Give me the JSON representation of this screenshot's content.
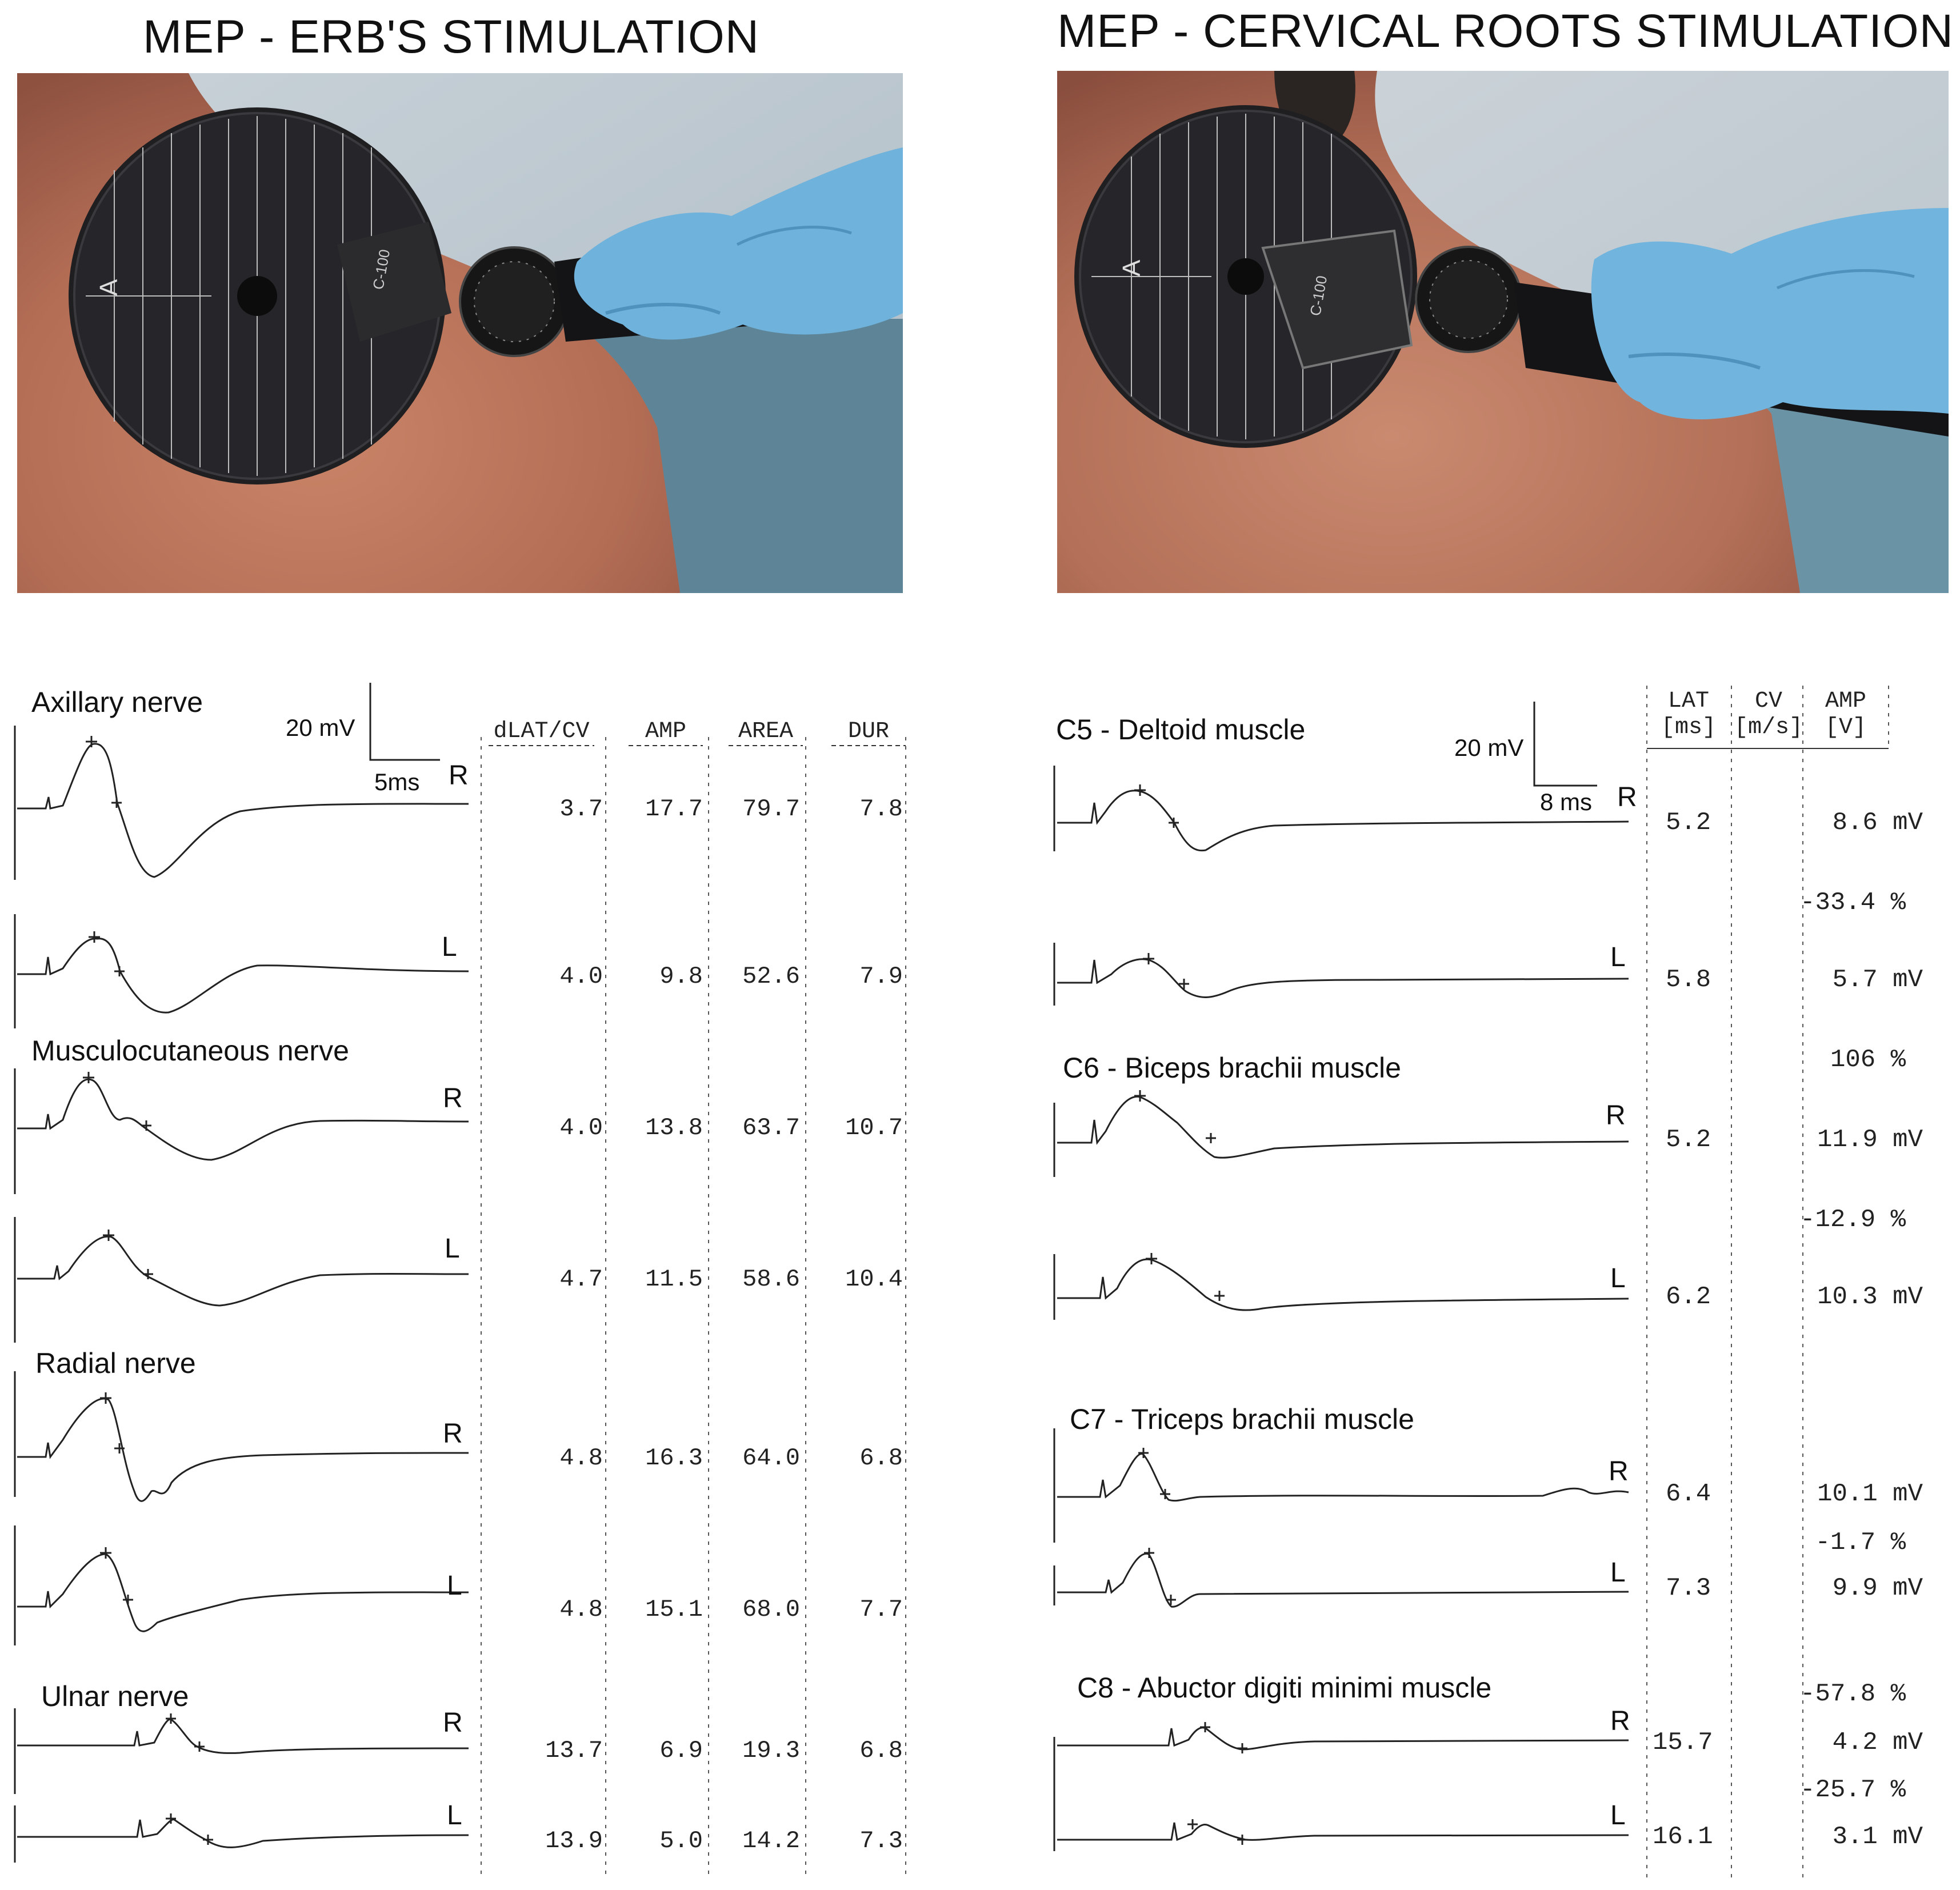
{
  "titles": {
    "left": "MEP - ERB'S STIMULATION",
    "right": "MEP - CERVICAL ROOTS STIMULATION"
  },
  "left_panel": {
    "scale": {
      "amplitude": "20 mV",
      "time": "5ms"
    },
    "headers": [
      "dLAT/CV",
      "AMP",
      "AREA",
      "DUR"
    ],
    "nerves": [
      {
        "name": "Axillary nerve",
        "rows": [
          {
            "side": "R",
            "values": [
              "3.7",
              "17.7",
              "79.7",
              "7.8"
            ]
          },
          {
            "side": "L",
            "values": [
              "4.0",
              "9.8",
              "52.6",
              "7.9"
            ]
          }
        ]
      },
      {
        "name": "Musculocutaneous nerve",
        "rows": [
          {
            "side": "R",
            "values": [
              "4.0",
              "13.8",
              "63.7",
              "10.7"
            ]
          },
          {
            "side": "L",
            "values": [
              "4.7",
              "11.5",
              "58.6",
              "10.4"
            ]
          }
        ]
      },
      {
        "name": "Radial nerve",
        "rows": [
          {
            "side": "R",
            "values": [
              "4.8",
              "16.3",
              "64.0",
              "6.8"
            ]
          },
          {
            "side": "L",
            "values": [
              "4.8",
              "15.1",
              "68.0",
              "7.7"
            ]
          }
        ]
      },
      {
        "name": "Ulnar nerve",
        "rows": [
          {
            "side": "R",
            "values": [
              "13.7",
              "6.9",
              "19.3",
              "6.8"
            ]
          },
          {
            "side": "L",
            "values": [
              "13.9",
              "5.0",
              "14.2",
              "7.3"
            ]
          }
        ]
      }
    ]
  },
  "right_panel": {
    "scale": {
      "amplitude": "20 mV",
      "time": "8 ms"
    },
    "headers": [
      {
        "top": "LAT",
        "bottom": "[ms]"
      },
      {
        "top": "CV",
        "bottom": "[m/s]"
      },
      {
        "top": "AMP",
        "bottom": "[V]"
      }
    ],
    "muscles": [
      {
        "name": "C5 - Deltoid muscle",
        "rows": [
          {
            "side": "R",
            "lat": "5.2",
            "amp": "8.6 mV"
          },
          {
            "side": "L",
            "lat": "5.8",
            "amp": "5.7 mV"
          }
        ],
        "diff": "-33.4 %"
      },
      {
        "name": "C6 - Biceps brachii muscle",
        "rows": [
          {
            "side": "R",
            "lat": "5.2",
            "amp": "11.9 mV"
          },
          {
            "side": "L",
            "lat": "6.2",
            "amp": "10.3 mV"
          }
        ],
        "diff": "-12.9 %",
        "pre_diff": "106 %"
      },
      {
        "name": "C7 - Triceps brachii muscle",
        "rows": [
          {
            "side": "R",
            "lat": "6.4",
            "amp": "10.1 mV"
          },
          {
            "side": "L",
            "lat": "7.3",
            "amp": "9.9 mV"
          }
        ],
        "diff": "-1.7 %"
      },
      {
        "name": "C8 - Abuctor digiti minimi muscle",
        "rows": [
          {
            "side": "R",
            "lat": "15.7",
            "amp": "4.2 mV"
          },
          {
            "side": "L",
            "lat": "16.1",
            "amp": "3.1 mV"
          }
        ],
        "diff": "-25.7 %",
        "pre_diff": "-57.8 %"
      }
    ]
  },
  "photos": {
    "left_device": "C-100",
    "right_device": "C-100",
    "dial_letter": "A"
  }
}
